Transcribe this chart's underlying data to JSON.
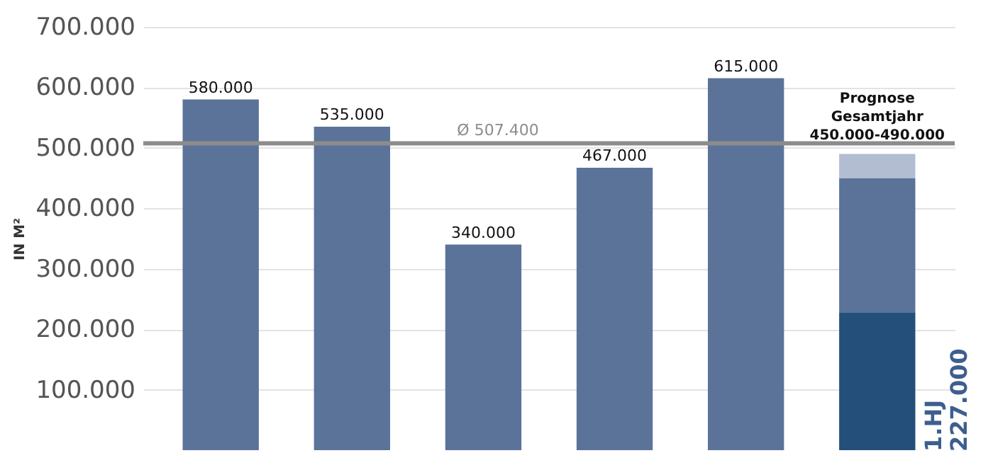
{
  "chart_data": {
    "type": "bar",
    "stacked": true,
    "ylabel": "IN M²",
    "categories": [
      null,
      null,
      null,
      null,
      null,
      null
    ],
    "series": [
      {
        "color": "#244f7a",
        "values": [
          null,
          null,
          null,
          null,
          null,
          227000
        ]
      },
      {
        "color": "#5b7399",
        "values": [
          580000,
          535000,
          340000,
          467000,
          615000,
          223000
        ],
        "value_labels": [
          "580.000",
          "535.000",
          "340.000",
          "467.000",
          "615.000",
          null
        ]
      },
      {
        "color": "#b3bdd2",
        "values": [
          null,
          null,
          null,
          null,
          null,
          40000
        ]
      }
    ],
    "ylim": [
      0,
      700000
    ],
    "yticks": [
      {
        "value": 100000,
        "label": "100.000"
      },
      {
        "value": 200000,
        "label": "200.000"
      },
      {
        "value": 300000,
        "label": "300.000"
      },
      {
        "value": 400000,
        "label": "400.000"
      },
      {
        "value": 500000,
        "label": "500.000"
      },
      {
        "value": 600000,
        "label": "600.000"
      },
      {
        "value": 700000,
        "label": "700.000"
      }
    ],
    "grid": "y",
    "tick_labels": "y",
    "ref_lines": [
      {
        "axis": "y",
        "value": 507400,
        "label": "Ø 507.400",
        "color": "#8c8c8c"
      }
    ],
    "annotations": [
      "Prognose\nGesamtjahr\n450.000-490.000",
      "1.HJ\n227.000"
    ]
  }
}
